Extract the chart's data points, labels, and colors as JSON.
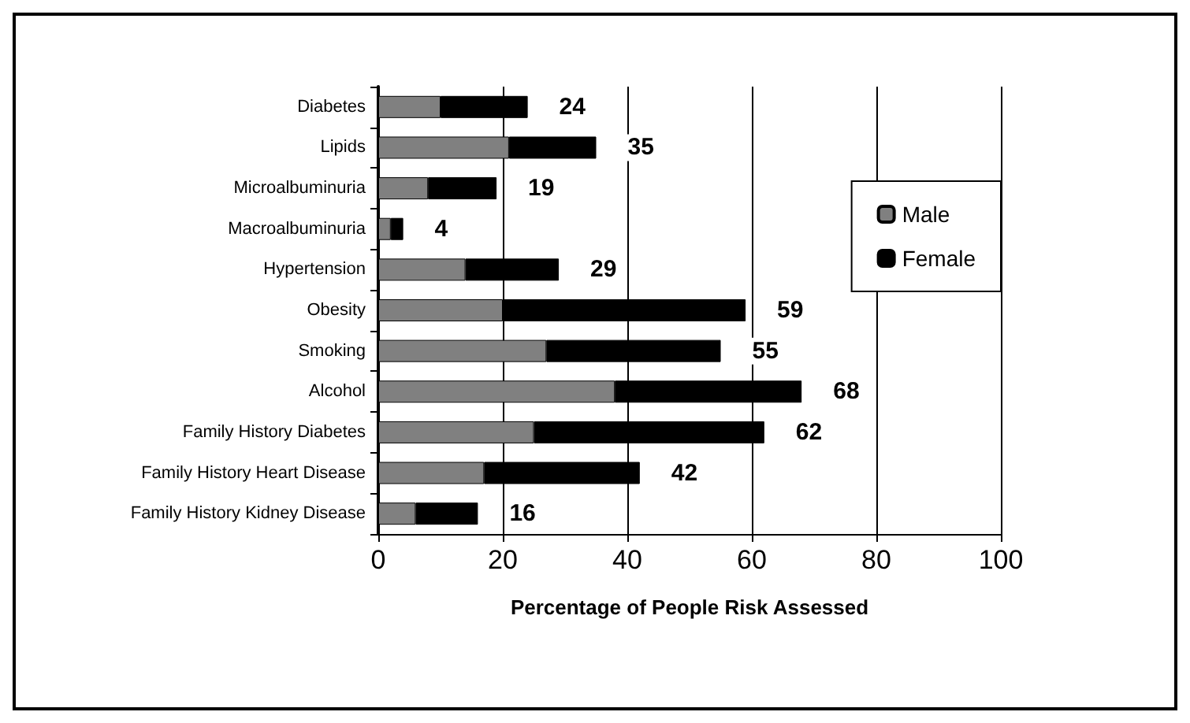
{
  "chart_data": {
    "type": "bar",
    "orientation": "horizontal",
    "stacked": true,
    "xlabel": "Percentage of People Risk Assessed",
    "categories": [
      "Diabetes",
      "Lipids",
      "Microalbuminuria",
      "Macroalbuminuria",
      "Hypertension",
      "Obesity",
      "Smoking",
      "Alcohol",
      "Family History Diabetes",
      "Family History Heart Disease",
      "Family History Kidney Disease"
    ],
    "series": [
      {
        "name": "Male",
        "color": "#808080",
        "values": [
          10,
          21,
          8,
          2,
          14,
          20,
          27,
          38,
          25,
          17,
          6
        ]
      },
      {
        "name": "Female",
        "color": "#000000",
        "values": [
          14,
          14,
          11,
          2,
          15,
          39,
          28,
          30,
          37,
          25,
          10
        ]
      }
    ],
    "totals": [
      "24",
      "35",
      "19",
      "4",
      "29",
      "59",
      "55",
      "68",
      "62",
      "42",
      "16"
    ],
    "xlim": [
      0,
      100
    ],
    "xticks": [
      0,
      20,
      40,
      60,
      80,
      100
    ],
    "grid": "x",
    "legend": "right"
  }
}
